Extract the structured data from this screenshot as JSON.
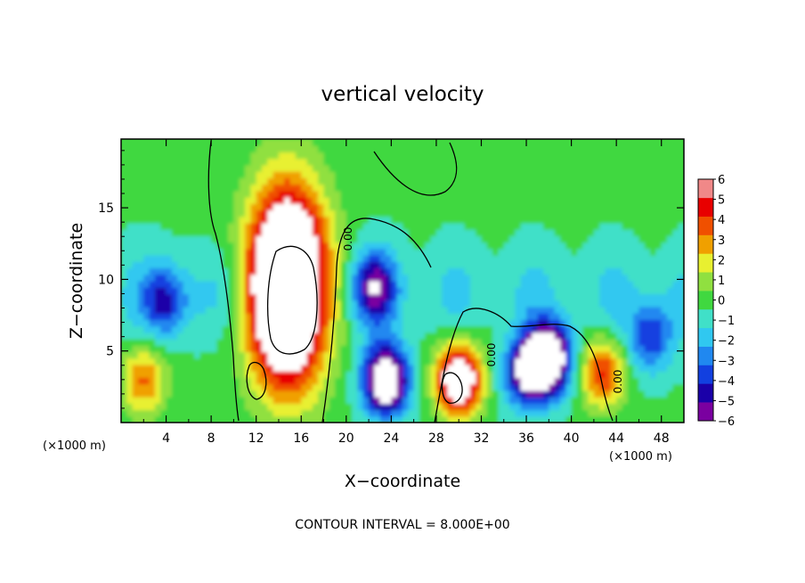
{
  "chart_data": {
    "type": "heatmap",
    "title": "vertical velocity",
    "xlabel": "X−coordinate",
    "ylabel": "Z−coordinate",
    "x_unit_left": "(×1000 m)",
    "x_unit_right": "(×1000 m)",
    "footer": "CONTOUR INTERVAL = 8.000E+00",
    "xlim": [
      0,
      50
    ],
    "ylim": [
      0,
      19.8
    ],
    "x_ticks": [
      4,
      8,
      12,
      16,
      20,
      24,
      28,
      32,
      36,
      40,
      44,
      48
    ],
    "y_ticks": [
      5,
      10,
      15
    ],
    "colorbar": {
      "levels": [
        -6,
        -5,
        -4,
        -3,
        -2,
        -1,
        0,
        1,
        2,
        3,
        4,
        5,
        6
      ],
      "labels": [
        "6",
        "5",
        "4",
        "3",
        "2",
        "1",
        "0",
        "−1",
        "−2",
        "−3",
        "−4",
        "−5",
        "−6"
      ],
      "colors": [
        "#7a00a0",
        "#1a00a8",
        "#1240e0",
        "#2088f0",
        "#30c8f0",
        "#40e0c8",
        "#40d840",
        "#90e040",
        "#e8f030",
        "#f0a000",
        "#f05000",
        "#e80000",
        "#f08888"
      ],
      "over_color": "#ffffff"
    },
    "contour_labels": [
      "0.00",
      "0.00",
      "0.00"
    ],
    "features": [
      {
        "kind": "updraft",
        "x": 14.8,
        "z": 9.5,
        "peak": 14
      },
      {
        "kind": "updraft",
        "x": 30,
        "z": 3,
        "peak": 9
      },
      {
        "kind": "updraft",
        "x": 2,
        "z": 3,
        "peak": 4
      },
      {
        "kind": "updraft",
        "x": 42.8,
        "z": 3.5,
        "peak": 5
      },
      {
        "kind": "downdraft",
        "x": 23.5,
        "z": 3,
        "peak": -9
      },
      {
        "kind": "downdraft",
        "x": 38,
        "z": 4.5,
        "peak": -9
      },
      {
        "kind": "downdraft",
        "x": 36,
        "z": 3.5,
        "peak": -6
      },
      {
        "kind": "downdraft",
        "x": 22.5,
        "z": 9.5,
        "peak": -5
      },
      {
        "kind": "downdraft",
        "x": 4,
        "z": 8.5,
        "peak": -4
      },
      {
        "kind": "downdraft",
        "x": 47,
        "z": 6,
        "peak": -4
      }
    ]
  }
}
